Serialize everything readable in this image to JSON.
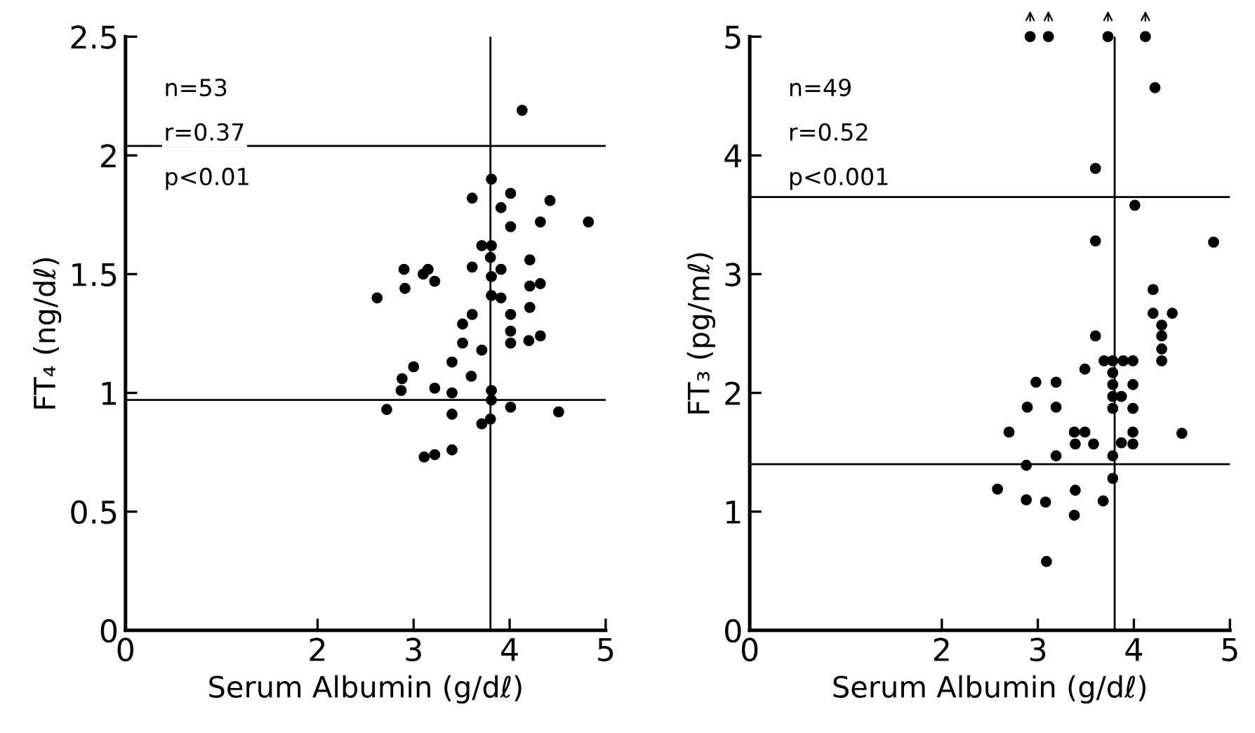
{
  "chart_data": [
    {
      "type": "scatter",
      "xlabel": "Serum Albumin (g/dℓ)",
      "ylabel": "FT₄ (ng/dℓ)",
      "annotations": [
        "n=53",
        "r=0.37",
        "p<0.01"
      ],
      "xlim": [
        0,
        5
      ],
      "xticks": [
        0,
        2,
        3,
        4,
        5
      ],
      "ylim": [
        0,
        2.5
      ],
      "yticks": [
        0,
        0.5,
        1,
        1.5,
        2,
        2.5
      ],
      "grid": false,
      "marker": "circle",
      "ref_lines": [
        {
          "axis": "y",
          "value": 2.04,
          "color": "#000000"
        },
        {
          "axis": "y",
          "value": 0.97,
          "color": "#000000"
        },
        {
          "axis": "x",
          "value": 3.8,
          "color": "#000000"
        }
      ],
      "series": [
        {
          "color": "#000000",
          "x": [
            2.62,
            2.72,
            2.9,
            2.91,
            2.88,
            2.87,
            3.0,
            3.1,
            3.15,
            3.22,
            3.22,
            3.11,
            3.22,
            3.4,
            3.4,
            3.4,
            3.4,
            3.51,
            3.51,
            3.61,
            3.61,
            3.61,
            3.6,
            3.71,
            3.71,
            3.71,
            3.81,
            3.81,
            3.8,
            3.81,
            3.81,
            3.81,
            3.81,
            3.8,
            3.91,
            3.91,
            3.91,
            4.01,
            4.01,
            4.01,
            4.01,
            4.01,
            4.01,
            4.13,
            4.21,
            4.21,
            4.21,
            4.2,
            4.32,
            4.32,
            4.32,
            4.42,
            4.51,
            4.82
          ],
          "values": [
            1.4,
            0.93,
            1.52,
            1.44,
            1.06,
            1.01,
            1.11,
            1.5,
            1.52,
            1.47,
            1.02,
            0.73,
            0.74,
            1.13,
            1.0,
            0.91,
            0.76,
            1.29,
            1.21,
            1.82,
            1.53,
            1.33,
            1.07,
            1.18,
            1.62,
            0.87,
            1.9,
            1.62,
            1.57,
            1.49,
            1.41,
            1.01,
            0.97,
            0.89,
            1.78,
            1.52,
            1.4,
            1.84,
            1.7,
            1.33,
            1.26,
            1.21,
            0.94,
            2.19,
            1.56,
            1.45,
            1.36,
            1.22,
            1.72,
            1.46,
            1.24,
            1.81,
            0.92,
            1.72
          ]
        }
      ]
    },
    {
      "type": "scatter",
      "xlabel": "Serum Albumin (g/dℓ)",
      "ylabel": "FT₃ (pg/mℓ)",
      "annotations": [
        "n=49",
        "r=0.52",
        "p<0.001"
      ],
      "xlim": [
        0,
        5
      ],
      "xticks": [
        0,
        2,
        3,
        4,
        5
      ],
      "ylim": [
        0,
        5
      ],
      "yticks": [
        0,
        1,
        2,
        3,
        4,
        5
      ],
      "grid": false,
      "marker": "circle",
      "ref_lines": [
        {
          "axis": "y",
          "value": 3.65,
          "color": "#000000"
        },
        {
          "axis": "y",
          "value": 1.4,
          "color": "#000000"
        },
        {
          "axis": "x",
          "value": 3.8,
          "color": "#000000"
        }
      ],
      "series": [
        {
          "color": "#000000",
          "x": [
            2.92,
            3.11,
            3.73,
            4.12,
            4.22,
            3.6,
            4.01,
            3.6,
            4.83,
            4.2,
            4.2,
            4.4,
            4.29,
            4.29,
            4.29,
            4.29,
            3.6,
            3.69,
            3.78,
            3.89,
            3.99,
            3.49,
            3.78,
            3.78,
            3.78,
            3.78,
            3.87,
            3.99,
            3.99,
            3.99,
            3.99,
            3.87,
            3.78,
            3.78,
            2.98,
            3.19,
            2.89,
            3.19,
            2.7,
            3.19,
            2.88,
            3.38,
            3.39,
            3.49,
            3.58,
            2.58,
            2.88,
            3.08,
            3.39,
            3.38,
            3.68,
            3.09,
            4.5
          ],
          "values": [
            5,
            5,
            5,
            5,
            4.57,
            3.89,
            3.58,
            3.28,
            3.27,
            2.87,
            2.67,
            2.67,
            2.57,
            2.48,
            2.37,
            2.27,
            2.48,
            2.27,
            2.27,
            2.27,
            2.27,
            2.2,
            2.17,
            2.07,
            1.97,
            1.87,
            1.97,
            2.07,
            1.87,
            1.67,
            1.57,
            1.58,
            1.47,
            1.28,
            2.09,
            2.09,
            1.88,
            1.88,
            1.67,
            1.47,
            1.39,
            1.67,
            1.57,
            1.67,
            1.57,
            1.19,
            1.1,
            1.08,
            1.18,
            0.97,
            1.09,
            0.58,
            1.66
          ]
        }
      ]
    }
  ]
}
